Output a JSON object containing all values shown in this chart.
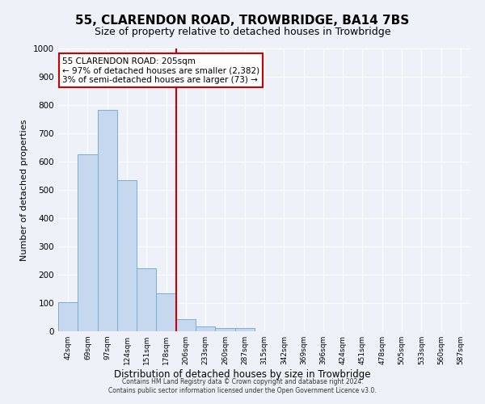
{
  "title": "55, CLARENDON ROAD, TROWBRIDGE, BA14 7BS",
  "subtitle": "Size of property relative to detached houses in Trowbridge",
  "xlabel": "Distribution of detached houses by size in Trowbridge",
  "ylabel": "Number of detached properties",
  "bar_labels": [
    "42sqm",
    "69sqm",
    "97sqm",
    "124sqm",
    "151sqm",
    "178sqm",
    "206sqm",
    "233sqm",
    "260sqm",
    "287sqm",
    "315sqm",
    "342sqm",
    "369sqm",
    "396sqm",
    "424sqm",
    "451sqm",
    "478sqm",
    "505sqm",
    "533sqm",
    "560sqm",
    "587sqm"
  ],
  "bar_values": [
    103,
    625,
    782,
    535,
    222,
    133,
    43,
    18,
    12,
    12,
    0,
    0,
    0,
    0,
    0,
    0,
    0,
    0,
    0,
    0,
    0
  ],
  "bar_color": "#c5d8f0",
  "bar_edge_color": "#7aadd4",
  "vline_color": "#cc0000",
  "annotation_text": "55 CLARENDON ROAD: 205sqm\n← 97% of detached houses are smaller (2,382)\n3% of semi-detached houses are larger (73) →",
  "annotation_box_color": "#cc0000",
  "ylim": [
    0,
    1000
  ],
  "yticks": [
    0,
    100,
    200,
    300,
    400,
    500,
    600,
    700,
    800,
    900,
    1000
  ],
  "bg_color": "#eef2f8",
  "plot_bg_color": "#eef2f8",
  "footer_line1": "Contains HM Land Registry data © Crown copyright and database right 2024.",
  "footer_line2": "Contains public sector information licensed under the Open Government Licence v3.0.",
  "title_fontsize": 11,
  "subtitle_fontsize": 9,
  "xlabel_fontsize": 8.5,
  "ylabel_fontsize": 8
}
